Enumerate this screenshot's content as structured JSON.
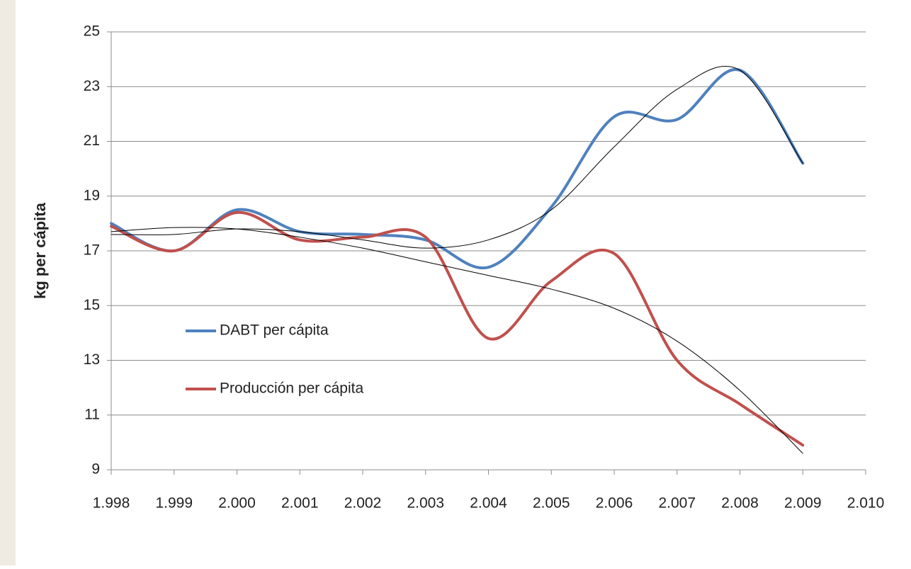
{
  "chart_data": {
    "type": "line",
    "y_label": "kg per cápita",
    "x": [
      1998,
      1999,
      2000,
      2001,
      2002,
      2003,
      2004,
      2005,
      2006,
      2007,
      2008,
      2009
    ],
    "series": [
      {
        "name": "DABT per cápita",
        "color": "#4f81bd",
        "width": 4,
        "values": [
          18.0,
          17.0,
          18.5,
          17.7,
          17.6,
          17.4,
          16.4,
          18.6,
          21.9,
          21.8,
          23.6,
          20.2
        ]
      },
      {
        "name": "Producción per cápita",
        "color": "#c0504d",
        "width": 4,
        "values": [
          17.9,
          17.0,
          18.4,
          17.4,
          17.5,
          17.5,
          13.8,
          15.9,
          16.9,
          13.0,
          11.4,
          9.9
        ]
      },
      {
        "color": "#000000",
        "width": 1,
        "values": [
          17.6,
          17.6,
          17.8,
          17.7,
          17.4,
          17.1,
          17.4,
          18.5,
          20.8,
          22.9,
          23.6,
          20.2
        ]
      },
      {
        "color": "#000000",
        "width": 1,
        "values": [
          17.7,
          17.85,
          17.8,
          17.5,
          17.1,
          16.6,
          16.1,
          15.6,
          14.9,
          13.7,
          11.9,
          9.6
        ]
      }
    ],
    "xlim": [
      1998,
      2010
    ],
    "xticks": [
      {
        "value": 1998,
        "label": "1.998"
      },
      {
        "value": 1999,
        "label": "1.999"
      },
      {
        "value": 2000,
        "label": "2.000"
      },
      {
        "value": 2001,
        "label": "2.001"
      },
      {
        "value": 2002,
        "label": "2.002"
      },
      {
        "value": 2003,
        "label": "2.003"
      },
      {
        "value": 2004,
        "label": "2.004"
      },
      {
        "value": 2005,
        "label": "2.005"
      },
      {
        "value": 2006,
        "label": "2.006"
      },
      {
        "value": 2007,
        "label": "2.007"
      },
      {
        "value": 2008,
        "label": "2.008"
      },
      {
        "value": 2009,
        "label": "2.009"
      },
      {
        "value": 2010,
        "label": "2.010"
      }
    ],
    "ylim": [
      9,
      25
    ],
    "yticks": [
      9,
      11,
      13,
      15,
      17,
      19,
      21,
      23,
      25
    ],
    "grid": true,
    "smooth": true,
    "legend": "left"
  }
}
